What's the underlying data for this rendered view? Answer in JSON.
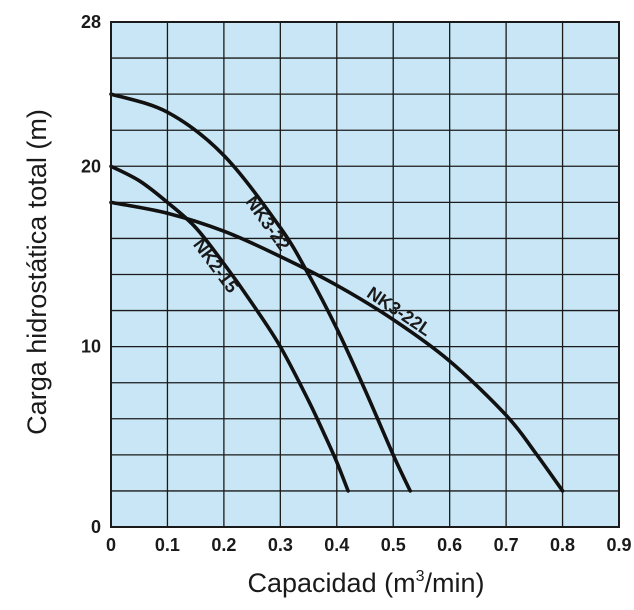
{
  "chart_data": {
    "type": "line",
    "title": "",
    "xlabel": "Capacidad (m³/min)",
    "xlabel_base": "Capacidad (m",
    "xlabel_sup": "3",
    "xlabel_tail": "/min)",
    "ylabel": "Carga hidrostática total (m)",
    "xlim": [
      0,
      0.9
    ],
    "ylim": [
      0,
      28
    ],
    "x_ticks": [
      "0",
      "0.1",
      "0.2",
      "0.3",
      "0.4",
      "0.5",
      "0.6",
      "0.7",
      "0.8",
      "0.9"
    ],
    "y_ticks": [
      "0",
      "10",
      "20",
      "28"
    ],
    "y_tick_values": [
      0,
      10,
      20,
      28
    ],
    "grid": true,
    "colors": {
      "plot_background": "#c9e6f6",
      "grid": "#1a1a1a",
      "curve": "#111111"
    },
    "series": [
      {
        "name": "NK2-15",
        "x": [
          0,
          0.05,
          0.1,
          0.15,
          0.2,
          0.25,
          0.3,
          0.35,
          0.38,
          0.4,
          0.42
        ],
        "y": [
          20,
          19.2,
          18.0,
          16.6,
          14.6,
          12.4,
          10.0,
          7.0,
          5.0,
          3.6,
          2.0
        ]
      },
      {
        "name": "NK3-22",
        "x": [
          0,
          0.1,
          0.2,
          0.3,
          0.35,
          0.4,
          0.45,
          0.5,
          0.53
        ],
        "y": [
          24.0,
          23.0,
          20.6,
          16.6,
          14.0,
          11.0,
          7.6,
          4.0,
          2.0
        ]
      },
      {
        "name": "NK3-22L",
        "x": [
          0,
          0.1,
          0.2,
          0.3,
          0.4,
          0.5,
          0.6,
          0.7,
          0.75,
          0.8
        ],
        "y": [
          18.0,
          17.4,
          16.4,
          15.0,
          13.4,
          11.5,
          9.2,
          6.2,
          4.2,
          2.0
        ]
      }
    ]
  }
}
